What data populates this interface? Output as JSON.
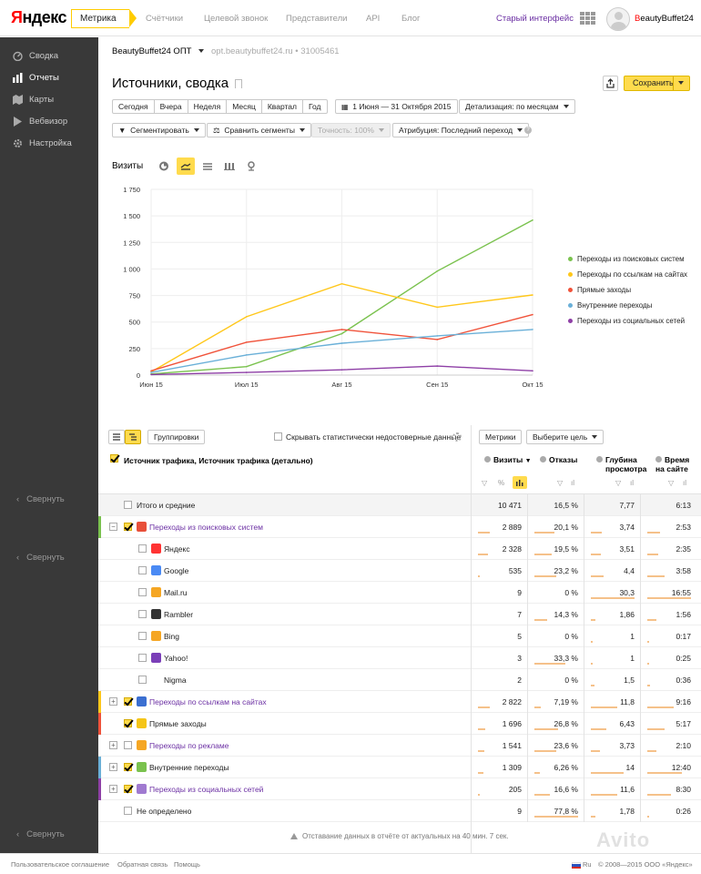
{
  "header": {
    "logo_ya": "Я",
    "logo_rest": "ндекс",
    "product": "Метрика",
    "nav": [
      "Счётчики",
      "Целевой звонок",
      "Представители",
      "API",
      "Блог"
    ],
    "old_interface": "Старый интерфейс",
    "user_first": "B",
    "user_rest": "eautyBuffet24"
  },
  "sidebar": {
    "items": [
      {
        "label": "Сводка",
        "icon": "gauge-icon"
      },
      {
        "label": "Отчеты",
        "icon": "bar-chart-icon"
      },
      {
        "label": "Карты",
        "icon": "map-icon"
      },
      {
        "label": "Вебвизор",
        "icon": "play-icon"
      },
      {
        "label": "Настройка",
        "icon": "gear-icon"
      }
    ],
    "collapse": "Свернуть"
  },
  "context": {
    "counter": "BeautyBuffet24 ОПТ",
    "site": "opt.beautybuffet24.ru",
    "id": "31005461"
  },
  "page": {
    "title": "Источники, сводка",
    "save": "Сохранить"
  },
  "periods": [
    "Сегодня",
    "Вчера",
    "Неделя",
    "Месяц",
    "Квартал",
    "Год"
  ],
  "date_range": "1 Июня — 31 Октября 2015",
  "detail": "Детализация: по месяцам",
  "segment": "Сегментировать",
  "compare": "Сравнить сегменты",
  "accuracy": "Точность: 100%",
  "attribution": "Атрибуция: Последний переход",
  "chart_label": "Визиты",
  "chart_data": {
    "type": "line",
    "x": [
      "Июн 15",
      "Июл 15",
      "Авг 15",
      "Сен 15",
      "Окт 15"
    ],
    "yticks": [
      0,
      250,
      500,
      750,
      "1 000",
      "1 250",
      "1 500",
      "1 750"
    ],
    "ylim": [
      0,
      1750
    ],
    "grid": true,
    "legend": "right",
    "series": [
      {
        "name": "Переходы из поисковых систем",
        "color": "#7ac24e",
        "values": [
          10,
          80,
          390,
          980,
          1460
        ]
      },
      {
        "name": "Переходы по ссылкам на сайтах",
        "color": "#ffc71a",
        "values": [
          30,
          550,
          860,
          640,
          755
        ]
      },
      {
        "name": "Прямые заходы",
        "color": "#f0523a",
        "values": [
          40,
          310,
          430,
          335,
          570
        ]
      },
      {
        "name": "Внутренние переходы",
        "color": "#6ab0d8",
        "values": [
          25,
          190,
          300,
          370,
          430
        ]
      },
      {
        "name": "Переходы из социальных сетей",
        "color": "#8e3fa6",
        "values": [
          5,
          25,
          50,
          85,
          40
        ]
      }
    ]
  },
  "table": {
    "groupings": "Группировки",
    "hide_label": "Скрывать статистически недостоверные данные",
    "metrics_btn": "Метрики",
    "goal_btn": "Выберите цель",
    "source_header": "Источник трафика, Источник трафика (детально)",
    "columns": [
      {
        "l1": "Визиты",
        "l2": ""
      },
      {
        "l1": "Отказы",
        "l2": ""
      },
      {
        "l1": "Глубина",
        "l2": "просмотра"
      },
      {
        "l1": "Время",
        "l2": "на сайте"
      }
    ],
    "filter_marks": [
      "▽",
      "%"
    ],
    "rows": [
      {
        "label": "Итого и средние",
        "v": [
          "10 471",
          "16,5 %",
          "7,77",
          "6:13"
        ],
        "b": [
          1,
          0,
          0,
          0
        ]
      },
      {
        "label": "Переходы из поисковых систем",
        "v": [
          "2 889",
          "20,1 %",
          "3,74",
          "2:53"
        ],
        "b": [
          0.28,
          0.45,
          0.25,
          0.3
        ]
      },
      {
        "label": "Яндекс",
        "v": [
          "2 328",
          "19,5 %",
          "3,51",
          "2:35"
        ],
        "b": [
          0.22,
          0.4,
          0.22,
          0.25
        ]
      },
      {
        "label": "Google",
        "v": [
          "535",
          "23,2 %",
          "4,4",
          "3:58"
        ],
        "b": [
          0.05,
          0.5,
          0.3,
          0.4
        ]
      },
      {
        "label": "Mail.ru",
        "v": [
          "9",
          "0 %",
          "30,3",
          "16:55"
        ],
        "b": [
          0,
          0,
          1,
          1
        ]
      },
      {
        "label": "Rambler",
        "v": [
          "7",
          "14,3 %",
          "1,86",
          "1:56"
        ],
        "b": [
          0,
          0.3,
          0.1,
          0.2
        ]
      },
      {
        "label": "Bing",
        "v": [
          "5",
          "0 %",
          "1",
          "0:17"
        ],
        "b": [
          0,
          0,
          0.05,
          0.03
        ]
      },
      {
        "label": "Yahoo!",
        "v": [
          "3",
          "33,3 %",
          "1",
          "0:25"
        ],
        "b": [
          0,
          0.7,
          0.05,
          0.04
        ]
      },
      {
        "label": "Nigma",
        "v": [
          "2",
          "0 %",
          "1,5",
          "0:36"
        ],
        "b": [
          0,
          0,
          0.08,
          0.06
        ]
      },
      {
        "label": "Переходы по ссылкам на сайтах",
        "v": [
          "2 822",
          "7,19 %",
          "11,8",
          "9:16"
        ],
        "b": [
          0.27,
          0.15,
          0.6,
          0.6
        ]
      },
      {
        "label": "Прямые заходы",
        "v": [
          "1 696",
          "26,8 %",
          "6,43",
          "5:17"
        ],
        "b": [
          0.16,
          0.55,
          0.35,
          0.4
        ]
      },
      {
        "label": "Переходы по рекламе",
        "v": [
          "1 541",
          "23,6 %",
          "3,73",
          "2:10"
        ],
        "b": [
          0.15,
          0.5,
          0.2,
          0.2
        ]
      },
      {
        "label": "Внутренние переходы",
        "v": [
          "1 309",
          "6,26 %",
          "14",
          "12:40"
        ],
        "b": [
          0.13,
          0.13,
          0.75,
          0.8
        ]
      },
      {
        "label": "Переходы из социальных сетей",
        "v": [
          "205",
          "16,6 %",
          "11,6",
          "8:30"
        ],
        "b": [
          0.02,
          0.35,
          0.6,
          0.55
        ]
      },
      {
        "label": "Не определено",
        "v": [
          "9",
          "77,8 %",
          "1,78",
          "0:26"
        ],
        "b": [
          0,
          1,
          0.1,
          0.05
        ]
      }
    ]
  },
  "lag": "Отставание данных в отчёте от актуальных на 40 мин. 7 сек.",
  "footer": {
    "links": [
      "Пользовательское соглашение",
      "Обратная связь",
      "Помощь"
    ],
    "lang": "Ru",
    "copy": "© 2008—2015 ООО «Яндекс»"
  },
  "watermark": "Avito"
}
